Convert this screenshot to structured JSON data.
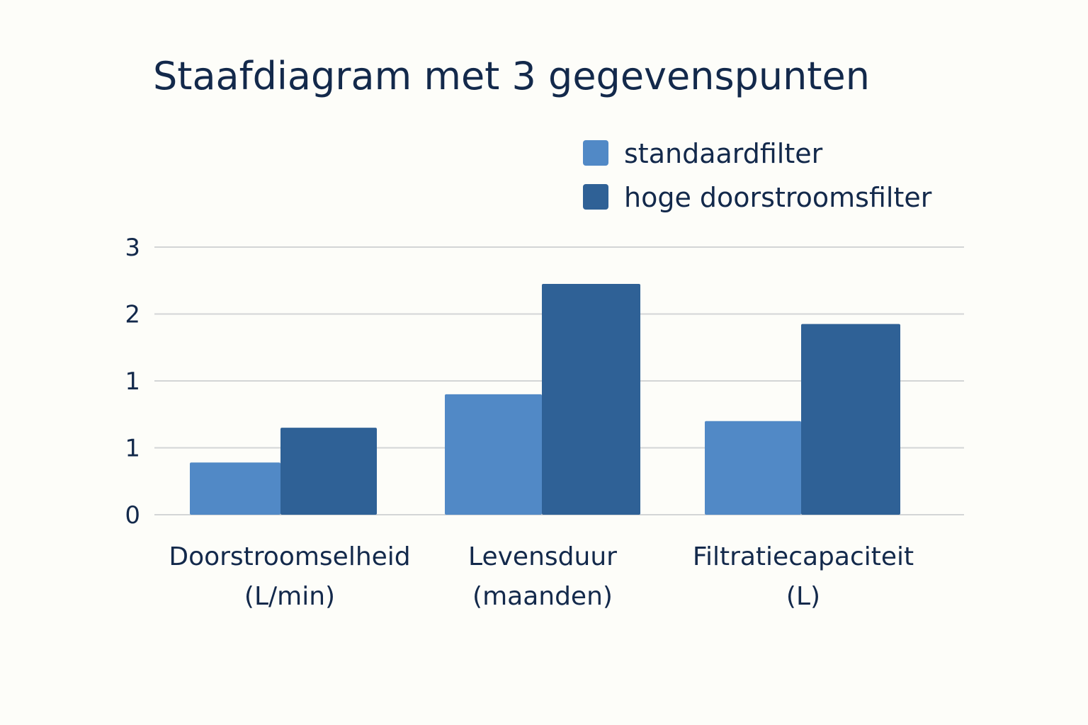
{
  "chart_data": {
    "type": "bar",
    "title": "Staafdiagram met 3 gegevenspunten",
    "xlabel": "",
    "ylabel": "",
    "categories": [
      [
        "Doorstroomselheid",
        "(L/min)"
      ],
      [
        "Levensduur",
        "(maanden)"
      ],
      [
        "Filtratiecapaciteit",
        "(L)"
      ]
    ],
    "y_ticks": [
      "0",
      "1",
      "1",
      "2",
      "3"
    ],
    "ylim": [
      0,
      4
    ],
    "grid": true,
    "legend_position": "top-right",
    "series": [
      {
        "name": "standaardfilter",
        "color": "#5189c6",
        "values": [
          0.78,
          1.8,
          1.4
        ]
      },
      {
        "name": "hoge doorstroomsfilter",
        "color": "#2f6196",
        "values": [
          1.3,
          3.45,
          2.85
        ]
      }
    ]
  }
}
